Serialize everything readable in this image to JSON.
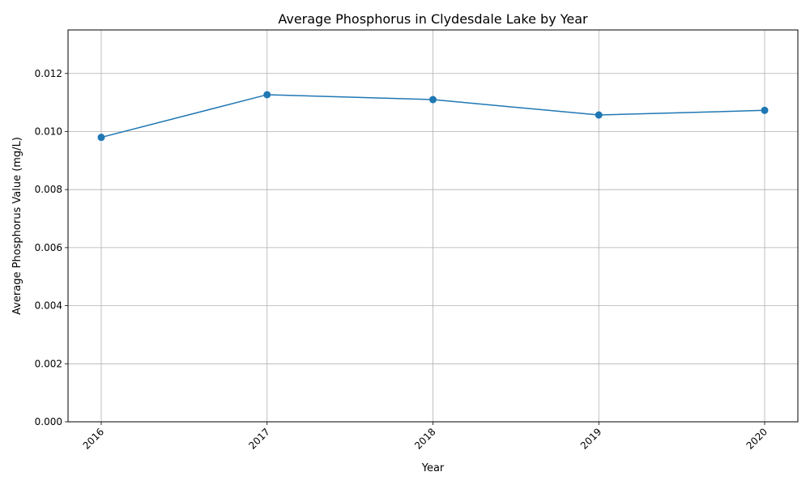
{
  "chart_data": {
    "type": "line",
    "title": "Average Phosphorus in Clydesdale Lake by Year",
    "xlabel": "Year",
    "ylabel": "Average Phosphorus Value (mg/L)",
    "categories": [
      "2016",
      "2017",
      "2018",
      "2019",
      "2020"
    ],
    "y_ticks": [
      "0.000",
      "0.002",
      "0.004",
      "0.006",
      "0.008",
      "0.010",
      "0.012"
    ],
    "ylim": [
      0,
      0.0135
    ],
    "grid": true,
    "series": [
      {
        "values": [
          0.0098,
          0.01127,
          0.0111,
          0.01057,
          0.01073
        ],
        "color": "#1f77b4",
        "marker": "circle"
      }
    ]
  }
}
